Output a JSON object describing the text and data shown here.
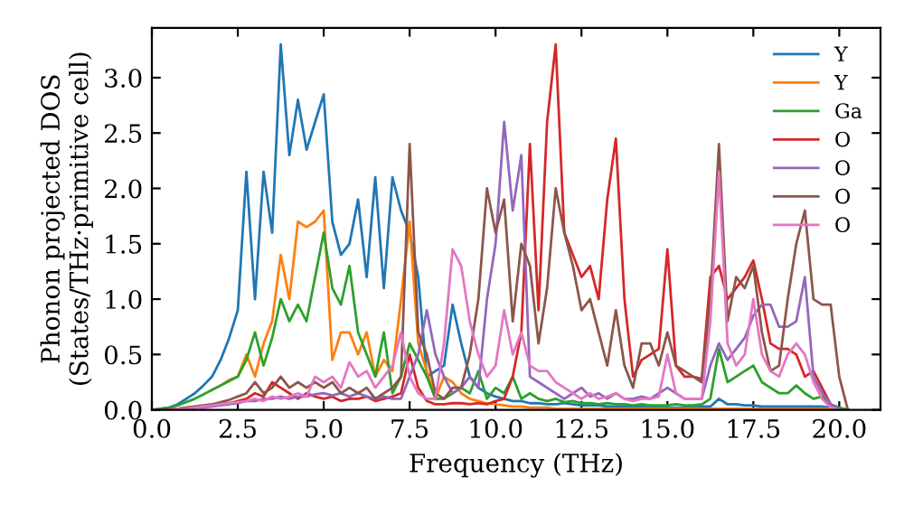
{
  "chart_data": {
    "type": "line",
    "xlabel": "Frequency (THz)",
    "ylabel": "Phonon projected DOS\n(States/THz·primitive cell)",
    "x": [
      0,
      0.25,
      0.5,
      0.75,
      1,
      1.25,
      1.5,
      1.75,
      2,
      2.25,
      2.5,
      2.75,
      3,
      3.25,
      3.5,
      3.75,
      4,
      4.25,
      4.5,
      4.75,
      5,
      5.25,
      5.5,
      5.75,
      6,
      6.25,
      6.5,
      6.75,
      7,
      7.25,
      7.5,
      7.75,
      8,
      8.25,
      8.5,
      8.75,
      9,
      9.25,
      9.5,
      9.75,
      10,
      10.25,
      10.5,
      10.75,
      11,
      11.25,
      11.5,
      11.75,
      12,
      12.25,
      12.5,
      12.75,
      13,
      13.25,
      13.5,
      13.75,
      14,
      14.25,
      14.5,
      14.75,
      15,
      15.25,
      15.5,
      15.75,
      16,
      16.25,
      16.5,
      16.75,
      17,
      17.25,
      17.5,
      17.75,
      18,
      18.25,
      18.5,
      18.75,
      19,
      19.25,
      19.5,
      19.75,
      20,
      20.25
    ],
    "xlim": [
      0,
      21.2
    ],
    "ylim": [
      0,
      3.45
    ],
    "xticks": [
      {
        "value": 0,
        "label": "0.0"
      },
      {
        "value": 2.5,
        "label": "2.5"
      },
      {
        "value": 5,
        "label": "5.0"
      },
      {
        "value": 7.5,
        "label": "7.5"
      },
      {
        "value": 10,
        "label": "10.0"
      },
      {
        "value": 12.5,
        "label": "12.5"
      },
      {
        "value": 15,
        "label": "15.0"
      },
      {
        "value": 17.5,
        "label": "17.5"
      },
      {
        "value": 20,
        "label": "20.0"
      }
    ],
    "yticks": [
      {
        "value": 0,
        "label": "0.0"
      },
      {
        "value": 0.5,
        "label": "0.5"
      },
      {
        "value": 1,
        "label": "1.0"
      },
      {
        "value": 1.5,
        "label": "1.5"
      },
      {
        "value": 2,
        "label": "2.0"
      },
      {
        "value": 2.5,
        "label": "2.5"
      },
      {
        "value": 3,
        "label": "3.0"
      }
    ],
    "grid": false,
    "legend": "top right",
    "marker": "none",
    "line_style": "solid",
    "series": [
      {
        "name": "Y",
        "color": "#1f77b4",
        "values": [
          0,
          0.01,
          0.02,
          0.05,
          0.1,
          0.15,
          0.22,
          0.3,
          0.45,
          0.65,
          0.9,
          2.15,
          1.0,
          2.15,
          1.6,
          3.3,
          2.3,
          2.8,
          2.35,
          2.6,
          2.85,
          1.7,
          1.4,
          1.5,
          1.9,
          1.2,
          2.1,
          1.1,
          2.1,
          1.8,
          1.6,
          1.2,
          0.3,
          0.35,
          0.4,
          0.95,
          0.6,
          0.3,
          0.2,
          0.15,
          0.12,
          0.1,
          0.08,
          0.08,
          0.06,
          0.06,
          0.05,
          0.05,
          0.06,
          0.05,
          0.04,
          0.04,
          0.04,
          0.03,
          0.03,
          0.03,
          0.03,
          0.03,
          0.02,
          0.02,
          0.02,
          0.02,
          0.02,
          0.02,
          0.03,
          0.03,
          0.1,
          0.05,
          0.05,
          0.04,
          0.04,
          0.03,
          0.03,
          0.03,
          0.03,
          0.03,
          0.03,
          0.03,
          0.03,
          0.02,
          0.01,
          0
        ]
      },
      {
        "name": "Y",
        "color": "#ff7f0e",
        "values": [
          null,
          null,
          null,
          null,
          null,
          null,
          null,
          0.18,
          0.22,
          0.27,
          0.3,
          0.5,
          0.3,
          0.6,
          0.8,
          1.4,
          1.0,
          1.7,
          1.65,
          1.7,
          1.8,
          0.45,
          0.7,
          0.7,
          0.5,
          0.7,
          0.3,
          0.45,
          0.35,
          1.0,
          1.7,
          0.6,
          0.35,
          0.1,
          0.3,
          0.25,
          0.15,
          0.1,
          0.08,
          0.06,
          0.05,
          0.04,
          0.03,
          0.03,
          0.02,
          0.02,
          0.02,
          0.01,
          0.01,
          0.01,
          0.01,
          0.01,
          0.01,
          0.01,
          0.01,
          0.01,
          0.01,
          0.01,
          0.01,
          0.01,
          0.01,
          0.01,
          0.01,
          0.01,
          0.01,
          0.01,
          0.01,
          0.01,
          0.01,
          0.01,
          0.01,
          0.01,
          0.01,
          0.01,
          0.01,
          0.01,
          0.01,
          0.01,
          0.01,
          0.01,
          0.01,
          0
        ]
      },
      {
        "name": "Ga",
        "color": "#2ca02c",
        "values": [
          0,
          0.01,
          0.02,
          0.04,
          0.07,
          0.1,
          0.14,
          0.18,
          0.22,
          0.26,
          0.3,
          0.45,
          0.7,
          0.4,
          0.65,
          1.0,
          0.8,
          0.95,
          0.8,
          1.2,
          1.6,
          1.1,
          0.95,
          1.3,
          0.7,
          0.5,
          0.3,
          0.7,
          0.15,
          0.3,
          0.6,
          0.45,
          0.3,
          0.1,
          0.1,
          0.15,
          0.2,
          0.15,
          0.35,
          0.1,
          0.2,
          0.15,
          0.3,
          0.1,
          0.15,
          0.1,
          0.08,
          0.1,
          0.07,
          0.08,
          0.06,
          0.06,
          0.05,
          0.06,
          0.05,
          0.05,
          0.04,
          0.05,
          0.04,
          0.04,
          0.04,
          0.05,
          0.04,
          0.04,
          0.05,
          0.1,
          0.55,
          0.25,
          0.3,
          0.35,
          0.4,
          0.25,
          0.2,
          0.15,
          0.15,
          0.22,
          0.15,
          0.1,
          0.12,
          0.05,
          0.02,
          0
        ]
      },
      {
        "name": "O",
        "color": "#d62728",
        "values": [
          null,
          null,
          0.01,
          0.01,
          0.02,
          0.02,
          0.03,
          0.04,
          0.05,
          0.06,
          0.08,
          0.1,
          0.15,
          0.12,
          0.25,
          0.2,
          0.15,
          0.1,
          0.15,
          0.12,
          0.1,
          0.12,
          0.08,
          0.1,
          0.1,
          0.12,
          0.08,
          0.1,
          0.12,
          0.15,
          0.5,
          0.2,
          0.08,
          0.05,
          0.05,
          0.06,
          0.06,
          0.05,
          0.06,
          0.05,
          0.08,
          0.1,
          0.3,
          0.7,
          2.4,
          0.9,
          2.6,
          3.3,
          1.6,
          1.4,
          1.2,
          1.3,
          1.0,
          1.9,
          2.45,
          1.0,
          0.3,
          0.45,
          0.5,
          0.55,
          1.45,
          0.4,
          0.3,
          0.3,
          0.28,
          1.2,
          1.3,
          1.0,
          1.1,
          1.2,
          1.35,
          1.0,
          0.6,
          0.55,
          0.55,
          0.5,
          0.3,
          0.35,
          0.2,
          0.05,
          0,
          0
        ]
      },
      {
        "name": "O",
        "color": "#9467bd",
        "values": [
          0,
          0,
          0,
          0.01,
          0.01,
          0.02,
          0.02,
          0.03,
          0.04,
          0.05,
          0.06,
          0.08,
          0.08,
          0.1,
          0.1,
          0.12,
          0.1,
          0.12,
          0.12,
          0.14,
          0.15,
          0.13,
          0.15,
          0.12,
          0.15,
          0.12,
          0.1,
          0.12,
          0.1,
          0.1,
          0.3,
          0.5,
          0.9,
          0.5,
          0.3,
          0.15,
          0.2,
          0.3,
          0.2,
          1.0,
          1.5,
          2.6,
          1.8,
          2.3,
          0.3,
          0.25,
          0.2,
          0.15,
          0.1,
          0.15,
          0.2,
          0.12,
          0.15,
          0.1,
          0.15,
          0.1,
          0.1,
          0.12,
          0.1,
          0.15,
          0.2,
          0.15,
          0.1,
          0.1,
          0.1,
          0.4,
          0.6,
          0.45,
          0.55,
          0.65,
          0.85,
          0.95,
          0.95,
          0.75,
          0.75,
          0.8,
          1.2,
          0.3,
          0.15,
          0.05,
          0,
          0
        ]
      },
      {
        "name": "O",
        "color": "#8c564b",
        "values": [
          0,
          0,
          0.01,
          0.01,
          0.02,
          0.03,
          0.04,
          0.05,
          0.07,
          0.09,
          0.12,
          0.15,
          0.25,
          0.15,
          0.2,
          0.3,
          0.2,
          0.25,
          0.2,
          0.25,
          0.2,
          0.25,
          0.15,
          0.2,
          0.15,
          0.2,
          0.1,
          0.15,
          0.2,
          0.3,
          2.4,
          0.7,
          0.5,
          0.15,
          0.1,
          0.2,
          0.2,
          0.5,
          1.0,
          2.0,
          1.6,
          1.9,
          0.8,
          1.5,
          1.3,
          0.6,
          1.1,
          2.0,
          1.6,
          1.3,
          0.9,
          1.0,
          0.7,
          0.4,
          0.9,
          0.4,
          0.2,
          0.6,
          0.6,
          0.4,
          0.7,
          0.4,
          0.35,
          0.3,
          0.25,
          1.0,
          2.4,
          0.8,
          1.2,
          1.1,
          1.3,
          0.7,
          0.35,
          0.4,
          1.0,
          1.5,
          1.8,
          1.0,
          0.95,
          0.95,
          0.3,
          0
        ]
      },
      {
        "name": "O",
        "color": "#e377c2",
        "values": [
          null,
          null,
          0,
          0.01,
          0.01,
          0.02,
          0.03,
          0.04,
          0.05,
          0.06,
          0.07,
          0.08,
          0.1,
          0.08,
          0.12,
          0.1,
          0.12,
          0.15,
          0.12,
          0.3,
          0.25,
          0.3,
          0.2,
          0.43,
          0.3,
          0.35,
          0.2,
          0.3,
          0.4,
          0.7,
          0.3,
          0.15,
          0.1,
          0.1,
          0.6,
          1.45,
          1.3,
          0.8,
          0.5,
          0.3,
          0.4,
          0.9,
          0.5,
          0.7,
          0.4,
          0.35,
          0.35,
          0.25,
          0.2,
          0.15,
          0.1,
          0.15,
          0.1,
          0.12,
          0.15,
          0.1,
          0.08,
          0.1,
          0.1,
          0.12,
          0.5,
          0.15,
          0.1,
          0.1,
          0.1,
          0.8,
          2.15,
          0.6,
          0.4,
          0.5,
          1.0,
          0.5,
          0.35,
          0.3,
          0.5,
          0.6,
          0.5,
          0.25,
          0.1,
          0.02,
          0,
          null
        ]
      }
    ]
  }
}
